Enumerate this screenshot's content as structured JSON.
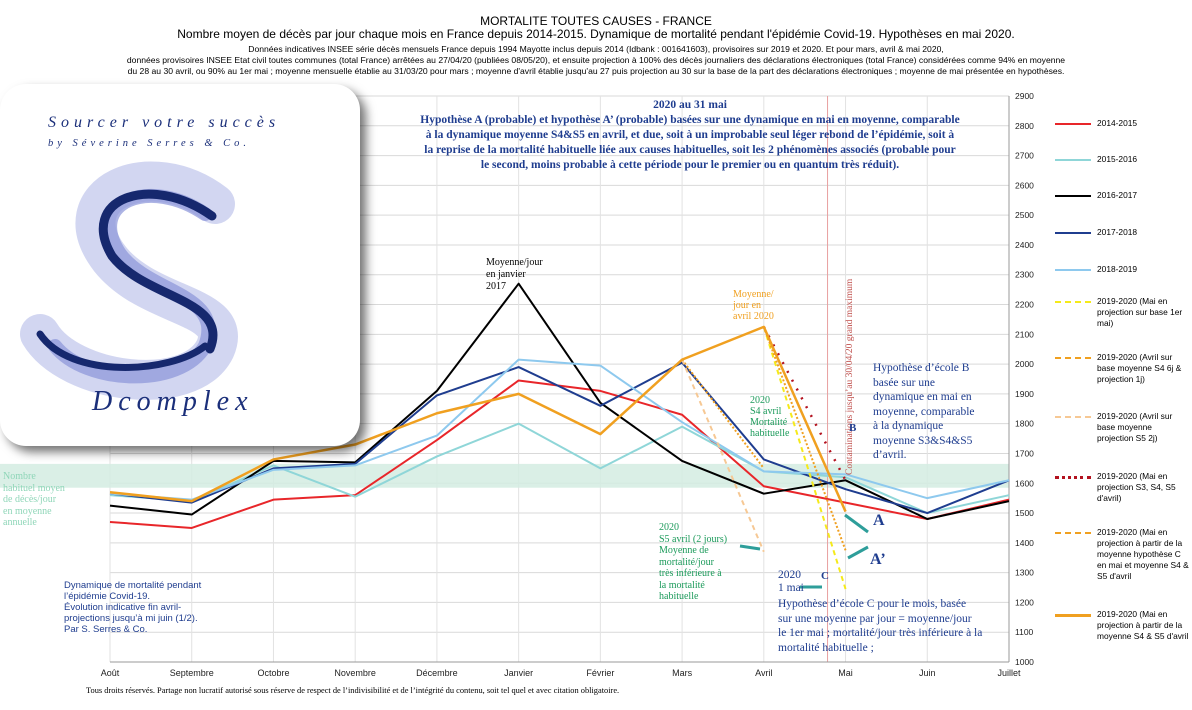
{
  "header": {
    "title": "MORTALITE TOUTES CAUSES - FRANCE",
    "subtitle": "Nombre moyen de décès par jour chaque mois en France depuis 2014-2015. Dynamique de mortalité pendant l'épidémie Covid-19. Hypothèses en mai 2020.",
    "note_line1": "Données indicatives INSEE série décès mensuels France depuis 1994 Mayotte inclus depuis 2014 (Idbank : 001641603), provisoires sur 2019 et 2020. Et pour mars, avril & mai 2020,",
    "note_line2": "données provisoires INSEE Etat civil toutes communes (total France) arrêtées au 27/04/20 (publiées 08/05/20), et ensuite projection à 100% des décès journaliers des déclarations électroniques (total France) considérées comme 94% en moyenne",
    "note_line3": "du 28 au 30 avril, ou 90% au 1er mai ;  moyenne mensuelle établie au 31/03/20 pour mars ; moyenne d'avril établie jusqu'au 27 puis projection au 30 sur la base de la part des déclarations électroniques ; moyenne de mai présentée en hypothèses."
  },
  "logo": {
    "line1": "Sourcer votre succès",
    "line2": "by Séverine Serres & Co.",
    "line3": "Dcomplex"
  },
  "annotations": {
    "hypA_title": "2020 au 31 mai",
    "hypA_1": "Hypothèse A (probable) et hypothèse A’ (probable) basées sur une dynamique en mai en moyenne, comparable",
    "hypA_2": "à la dynamique moyenne S4&S5  en avril, et due, soit à un improbable seul léger rebond de l’épidémie, soit à",
    "hypA_3": "la reprise de la mortalité habituelle liée aux causes habituelles, soit les 2 phénomènes associés (probable pour",
    "hypA_4": "le second, moins probable à cette période pour le premier ou en quantum très réduit).",
    "jan_1": "Moyenne/jour",
    "jan_2": "en janvier",
    "jan_3": "2017",
    "apr_1": "Moyenne/",
    "apr_2": "jour en",
    "apr_3": "avril 2020",
    "s4_1": "2020",
    "s4_2": "S4 avril",
    "s4_3": "Mortalité",
    "s4_4": "habituelle",
    "hypB_1": "Hypothèse d’école B",
    "hypB_2": "basée sur une",
    "hypB_3": "dynamique en mai en",
    "hypB_4": "moyenne, comparable",
    "hypB_5": "à la dynamique",
    "hypB_6": "moyenne S3&S4&S5",
    "hypB_7": "d’avril.",
    "contam": "Contaminations jusqu’au 30/04/20 grand maximum",
    "labelA": "A",
    "labelA2": "A’",
    "labelB": "B",
    "labelC": "C",
    "s5_1": "2020",
    "s5_2": "S5 avril (2 jours)",
    "s5_3": "Moyenne de",
    "s5_4": "mortalité/jour",
    "s5_5": "très inférieure à",
    "s5_6": "la mortalité",
    "s5_7": "habituelle",
    "may_1": "2020",
    "may_2": "1 mai",
    "hypC_1": "Hypothèse d’école C pour le mois, basée",
    "hypC_2": "sur une moyenne par jour = moyenne/jour",
    "hypC_3": "le 1er mai ; mortalité/jour très inférieure à la",
    "hypC_4": "mortalité habituelle ;",
    "usual_1": "Nombre",
    "usual_2": "habituel moyen",
    "usual_3": "de décès/jour",
    "usual_4": "en moyenne",
    "usual_5": "annuelle",
    "dyn_1": "Dynamique de mortalité pendant",
    "dyn_2": "l’épidémie Covid-19.",
    "dyn_3": "Évolution indicative fin avril-",
    "dyn_4": "projections jusqu’à mi juin (1/2).",
    "dyn_5": "Par S. Serres & Co."
  },
  "footer": "Tous droits réservés. Partage non lucratif autorisé sous réserve de respect de l’indivisibilité et de l’intégrité du contenu, soit tel quel et avec citation obligatoire.",
  "colors": {
    "s1415": "#e8262a",
    "s1516": "#8fd6d8",
    "s1617": "#000000",
    "s1718": "#1f3d8f",
    "s1819": "#8ec9ee",
    "hypYellow": "#f5ea1a",
    "hypOrange": "#f0a020",
    "hypPeach": "#f6c894",
    "hypRed": "#b3121f",
    "orange2020": "#f0a020",
    "band": "#d4ece2",
    "annotBlue": "#1f3d8f",
    "annotGreen": "#1b9a5a",
    "arrow": "#2e9e9a"
  },
  "chart_data": {
    "type": "line",
    "categories": [
      "Août",
      "Septembre",
      "Octobre",
      "Novembre",
      "Décembre",
      "Janvier",
      "Février",
      "Mars",
      "Avril",
      "Mai",
      "Juin",
      "Juillet"
    ],
    "ylim": [
      1000,
      2900
    ],
    "yticks": [
      1000,
      1100,
      1200,
      1300,
      1400,
      1500,
      1600,
      1700,
      1800,
      1900,
      2000,
      2100,
      2200,
      2300,
      2400,
      2500,
      2600,
      2700,
      2800,
      2900
    ],
    "usual_band": [
      1585,
      1665
    ],
    "series": [
      {
        "name": "2014-2015",
        "color": "s1415",
        "dash": "",
        "width": 2,
        "values": [
          1470,
          1450,
          1545,
          1560,
          1745,
          1945,
          1910,
          1830,
          1590,
          1535,
          1480,
          1545
        ]
      },
      {
        "name": "2015-2016",
        "color": "s1516",
        "dash": "",
        "width": 2,
        "values": [
          1560,
          1540,
          1660,
          1555,
          1690,
          1800,
          1650,
          1790,
          1640,
          1620,
          1500,
          1560
        ]
      },
      {
        "name": "2016-2017",
        "color": "s1617",
        "dash": "",
        "width": 2,
        "values": [
          1525,
          1495,
          1675,
          1670,
          1910,
          2270,
          1870,
          1675,
          1565,
          1610,
          1480,
          1540
        ]
      },
      {
        "name": "2017-2018",
        "color": "s1718",
        "dash": "",
        "width": 2,
        "values": [
          1565,
          1535,
          1650,
          1665,
          1895,
          1990,
          1860,
          2005,
          1680,
          1580,
          1500,
          1610
        ]
      },
      {
        "name": "2018-2019",
        "color": "s1819",
        "dash": "",
        "width": 2,
        "values": [
          1565,
          1545,
          1645,
          1660,
          1760,
          2015,
          1995,
          1805,
          1640,
          1630,
          1550,
          1610
        ]
      },
      {
        "name": "2019-2020 (Mai en projection sur base 1er mai)",
        "color": "hypYellow",
        "dash": "5,4",
        "width": 2,
        "values": [
          null,
          null,
          null,
          null,
          null,
          null,
          null,
          null,
          2125,
          1245,
          null,
          null
        ]
      },
      {
        "name": "2019-2020 (Avril sur base moyenne S4 6j & projection 1j)",
        "color": "hypOrange",
        "dash": "2,2",
        "width": 2,
        "values": [
          null,
          null,
          null,
          null,
          null,
          null,
          null,
          2015,
          1650,
          null,
          null,
          null
        ]
      },
      {
        "name": "2019-2020 (Avril sur base moyenne projection S5 2j)",
        "color": "hypPeach",
        "dash": "5,4",
        "width": 2,
        "values": [
          null,
          null,
          null,
          null,
          null,
          null,
          null,
          2015,
          1370,
          null,
          null,
          null
        ]
      },
      {
        "name": "2019-2020 (Mai en projection S3, S4, S5 d'avril)",
        "color": "hypRed",
        "dash": "2,8",
        "width": 2.5,
        "values": [
          null,
          null,
          null,
          null,
          null,
          null,
          null,
          null,
          2125,
          1610,
          null,
          null
        ]
      },
      {
        "name": "2019-2020 (Mai en projection à partir de la moyenne hypothèse C en mai et moyenne S4 & S5 d'avril",
        "color": "hypOrange",
        "dash": "2,2",
        "width": 2,
        "values": [
          null,
          null,
          null,
          null,
          null,
          null,
          null,
          null,
          2125,
          1375,
          null,
          null
        ]
      },
      {
        "name": "2019-2020 (Mai en projection à partir de la moyenne S4 & S5 d'avril",
        "color": "orange2020",
        "dash": "",
        "width": 2.5,
        "values": [
          1570,
          1540,
          1680,
          1730,
          1835,
          1900,
          1765,
          2015,
          2125,
          1505,
          null,
          null
        ]
      }
    ]
  }
}
